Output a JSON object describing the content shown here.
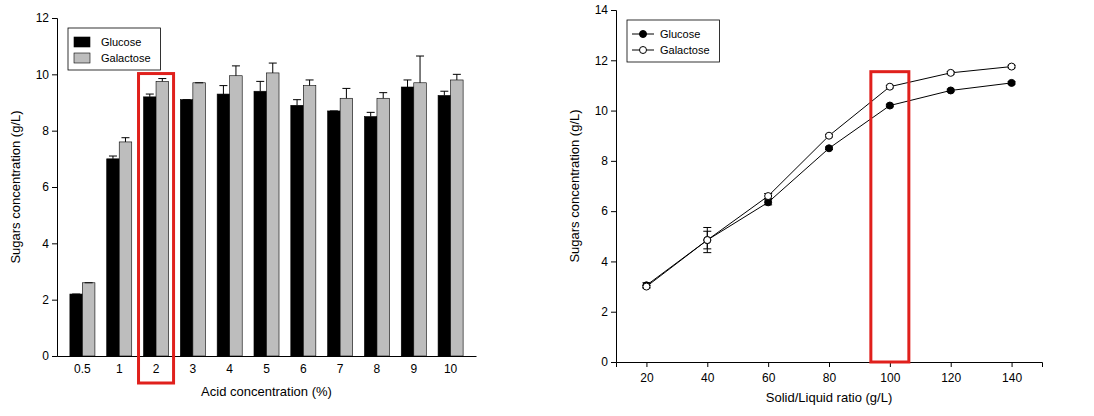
{
  "chart_data": [
    {
      "type": "bar",
      "x_label": "Acid concentration (%)",
      "y_label": "Sugars concentration (g/L)",
      "categories": [
        "0.5",
        "1",
        "2",
        "3",
        "4",
        "5",
        "6",
        "7",
        "8",
        "9",
        "10"
      ],
      "series": [
        {
          "name": "Glucose",
          "color": "#000000",
          "values": [
            2.2,
            7.0,
            9.2,
            9.1,
            9.3,
            9.4,
            8.9,
            8.7,
            8.5,
            9.55,
            9.25
          ],
          "errors": [
            0,
            0.1,
            0.1,
            0,
            0.3,
            0.35,
            0.2,
            0,
            0.15,
            0.25,
            0.15
          ]
        },
        {
          "name": "Galactose",
          "color": "#bdbdbd",
          "values": [
            2.6,
            7.6,
            9.75,
            9.7,
            9.95,
            10.05,
            9.6,
            9.15,
            9.15,
            9.7,
            9.8
          ],
          "errors": [
            0,
            0.15,
            0.1,
            0,
            0.35,
            0.35,
            0.2,
            0.35,
            0.2,
            0.95,
            0.2
          ]
        }
      ],
      "ylim": [
        0,
        12
      ],
      "yticks": [
        0,
        2,
        4,
        6,
        8,
        10,
        12
      ],
      "legend": "upper left",
      "highlight": "2"
    },
    {
      "type": "line",
      "x_label": "Solid/Liquid ratio  (g/L)",
      "y_label": "Sugars concentration (g/L)",
      "x": [
        20,
        40,
        60,
        80,
        100,
        120,
        140
      ],
      "series": [
        {
          "name": "Glucose",
          "color": "#000000",
          "marker": "circle",
          "values": [
            3.05,
            4.85,
            6.35,
            8.5,
            10.2,
            10.8,
            11.1
          ],
          "errors": [
            0.1,
            0.35,
            0.1,
            0.05,
            0.05,
            0.05,
            0.05
          ]
        },
        {
          "name": "Galactose",
          "color": "#000000",
          "marker": "circle-open",
          "values": [
            3.0,
            4.85,
            6.6,
            9.0,
            10.95,
            11.5,
            11.75
          ],
          "errors": [
            0.05,
            0.5,
            0.1,
            0.05,
            0.05,
            0.05,
            0.05
          ]
        }
      ],
      "xlim": [
        10,
        150
      ],
      "xticks": [
        20,
        40,
        60,
        80,
        100,
        120,
        140
      ],
      "ylim": [
        0,
        14
      ],
      "yticks": [
        0,
        2,
        4,
        6,
        8,
        10,
        12,
        14
      ],
      "legend": "upper left",
      "highlight": 100
    }
  ]
}
